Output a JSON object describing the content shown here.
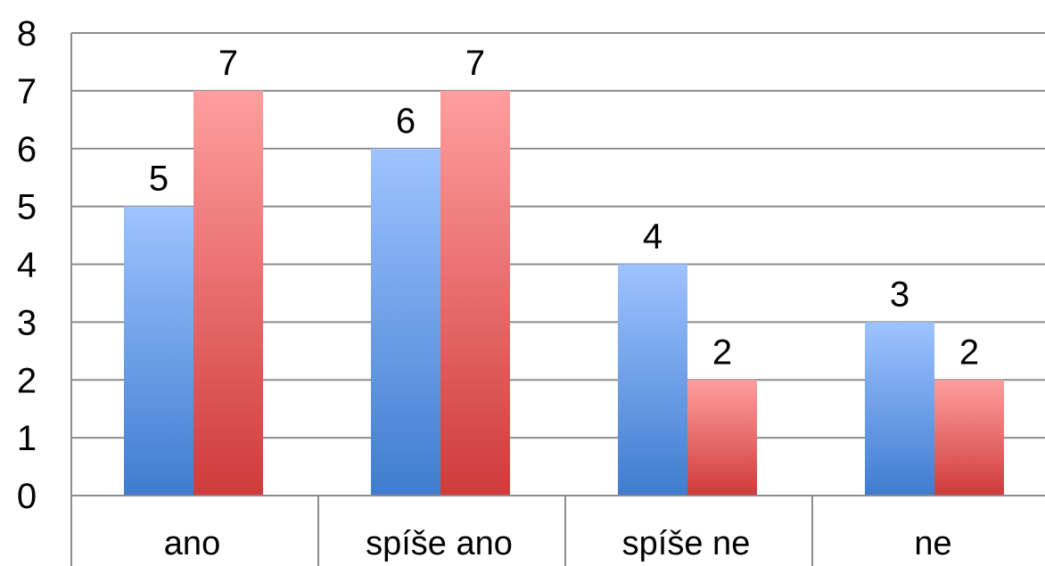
{
  "chart_data": {
    "type": "bar",
    "categories": [
      "ano",
      "spíše ano",
      "spíše ne",
      "ne"
    ],
    "series": [
      {
        "values": [
          5,
          6,
          4,
          3
        ],
        "color_top": "#9ec3ff",
        "color_bottom": "#3f7ccf"
      },
      {
        "values": [
          7,
          7,
          2,
          2
        ],
        "color_top": "#ff9e9e",
        "color_bottom": "#cf3b3b"
      }
    ],
    "ylim": [
      0,
      8
    ],
    "yticks": [
      0,
      1,
      2,
      3,
      4,
      5,
      6,
      7,
      8
    ],
    "grid": true,
    "data_labels": true,
    "legend": "none"
  }
}
